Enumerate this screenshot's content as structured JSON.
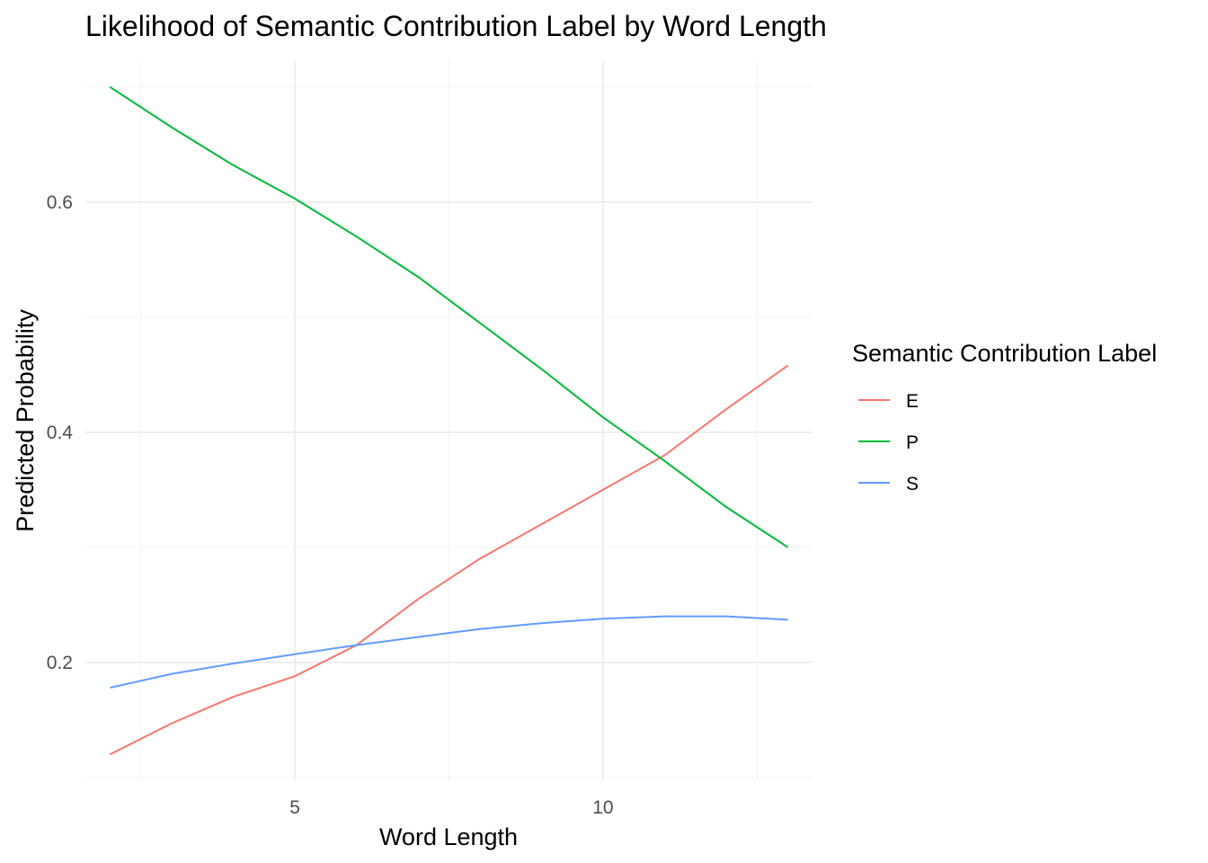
{
  "chart_data": {
    "type": "line",
    "title": "Likelihood of Semantic Contribution Label by Word Length",
    "xlabel": "Word Length",
    "ylabel": "Predicted Probability",
    "xlim": [
      1.6,
      13.4
    ],
    "ylim": [
      0.0975,
      0.7225
    ],
    "x_ticks": [
      5,
      10
    ],
    "x_tick_labels": [
      "5",
      "10"
    ],
    "x_minor_ticks": [
      2.5,
      7.5,
      12.5
    ],
    "y_ticks": [
      0.2,
      0.4,
      0.6
    ],
    "y_tick_labels": [
      "0.2",
      "0.4",
      "0.6"
    ],
    "y_minor_ticks": [
      0.1,
      0.3,
      0.5,
      0.7
    ],
    "grid": true,
    "legend": {
      "title": "Semantic Contribution Label",
      "position": "right"
    },
    "x": [
      2,
      3,
      4,
      5,
      6,
      7,
      8,
      9,
      10,
      11,
      12,
      13
    ],
    "series": [
      {
        "name": "E",
        "color": "#F8766D",
        "values": [
          0.12,
          0.147,
          0.17,
          0.188,
          0.215,
          0.255,
          0.29,
          0.32,
          0.35,
          0.38,
          0.42,
          0.458
        ]
      },
      {
        "name": "P",
        "color": "#00BA38",
        "values": [
          0.7,
          0.665,
          0.632,
          0.603,
          0.57,
          0.535,
          0.495,
          0.455,
          0.413,
          0.375,
          0.335,
          0.3
        ]
      },
      {
        "name": "S",
        "color": "#619CFF",
        "values": [
          0.178,
          0.19,
          0.199,
          0.207,
          0.215,
          0.222,
          0.229,
          0.234,
          0.238,
          0.24,
          0.24,
          0.237
        ]
      }
    ]
  }
}
